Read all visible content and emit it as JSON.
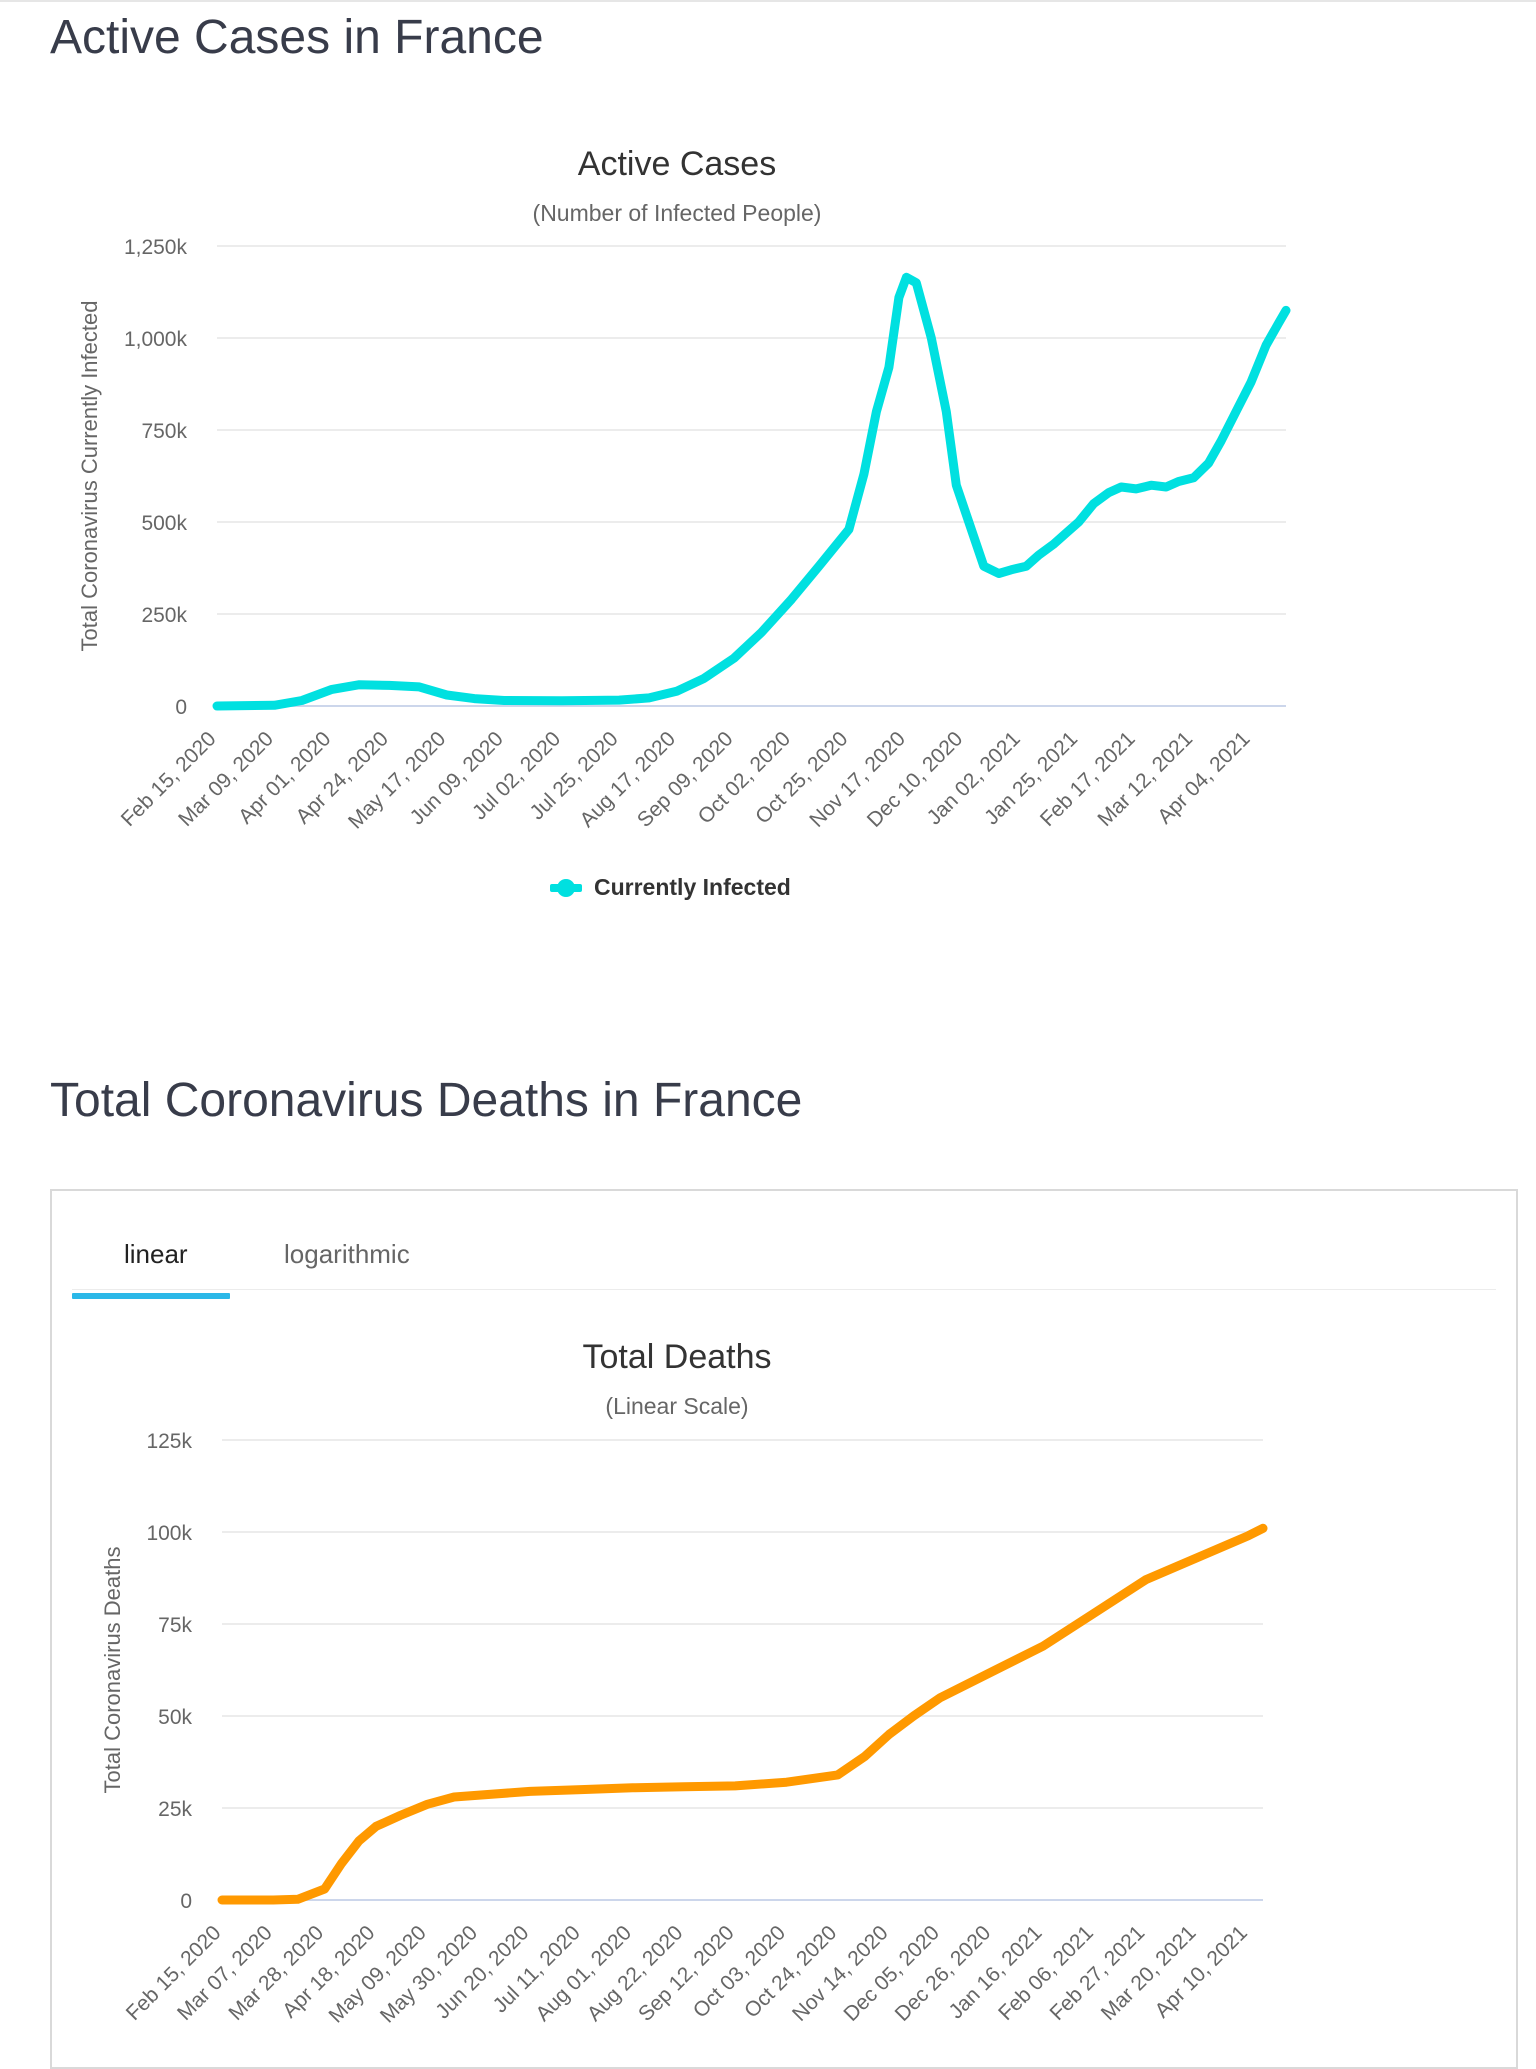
{
  "page": {
    "active_title": "Active Cases in France",
    "deaths_title": "Total Coronavirus Deaths in France"
  },
  "tabs": {
    "linear": "linear",
    "logarithmic": "logarithmic",
    "selected": "linear"
  },
  "colors": {
    "active_series": "#00e0e0",
    "deaths_series": "#ff9900",
    "tab_active_underline": "#2bb8e8"
  },
  "chart_data": [
    {
      "type": "line",
      "title": "Active Cases",
      "subtitle": "(Number of Infected People)",
      "xlabel": "",
      "ylabel": "Total Coronavirus Currently Infected",
      "ylim": [
        0,
        1250000
      ],
      "yticks": [
        0,
        250000,
        500000,
        750000,
        1000000,
        1250000
      ],
      "ytick_labels": [
        "0",
        "250k",
        "500k",
        "750k",
        "1,000k",
        "1,250k"
      ],
      "xtick_labels": [
        "Feb 15, 2020",
        "Mar 09, 2020",
        "Apr 01, 2020",
        "Apr 24, 2020",
        "May 17, 2020",
        "Jun 09, 2020",
        "Jul 02, 2020",
        "Jul 25, 2020",
        "Aug 17, 2020",
        "Sep 09, 2020",
        "Oct 02, 2020",
        "Oct 25, 2020",
        "Nov 17, 2020",
        "Dec 10, 2020",
        "Jan 02, 2021",
        "Jan 25, 2021",
        "Feb 17, 2021",
        "Mar 12, 2021",
        "Apr 04, 2021"
      ],
      "grid": true,
      "legend": "bottom-center",
      "series": [
        {
          "name": "Currently Infected",
          "x": [
            "Feb 15, 2020",
            "Mar 09, 2020",
            "Mar 20, 2020",
            "Apr 01, 2020",
            "Apr 12, 2020",
            "Apr 24, 2020",
            "May 06, 2020",
            "May 17, 2020",
            "May 28, 2020",
            "Jun 09, 2020",
            "Jul 02, 2020",
            "Jul 25, 2020",
            "Aug 06, 2020",
            "Aug 17, 2020",
            "Aug 28, 2020",
            "Sep 09, 2020",
            "Sep 20, 2020",
            "Oct 02, 2020",
            "Oct 13, 2020",
            "Oct 25, 2020",
            "Oct 31, 2020",
            "Nov 05, 2020",
            "Nov 10, 2020",
            "Nov 14, 2020",
            "Nov 17, 2020",
            "Nov 21, 2020",
            "Nov 27, 2020",
            "Dec 03, 2020",
            "Dec 07, 2020",
            "Dec 12, 2020",
            "Dec 18, 2020",
            "Dec 24, 2020",
            "Dec 29, 2020",
            "Jan 04, 2021",
            "Jan 09, 2021",
            "Jan 15, 2021",
            "Jan 20, 2021",
            "Jan 25, 2021",
            "Jan 31, 2021",
            "Feb 06, 2021",
            "Feb 11, 2021",
            "Feb 17, 2021",
            "Feb 23, 2021",
            "Mar 01, 2021",
            "Mar 06, 2021",
            "Mar 12, 2021",
            "Mar 18, 2021",
            "Mar 23, 2021",
            "Mar 29, 2021",
            "Apr 04, 2021",
            "Apr 10, 2021",
            "Apr 15, 2021",
            "Apr 18, 2021"
          ],
          "values": [
            0,
            2000,
            15000,
            45000,
            58000,
            56000,
            52000,
            30000,
            20000,
            15000,
            14000,
            16000,
            22000,
            40000,
            75000,
            130000,
            200000,
            290000,
            380000,
            480000,
            630000,
            800000,
            920000,
            1110000,
            1165000,
            1150000,
            1000000,
            800000,
            600000,
            500000,
            380000,
            360000,
            370000,
            380000,
            410000,
            440000,
            470000,
            500000,
            550000,
            580000,
            595000,
            590000,
            600000,
            595000,
            610000,
            620000,
            660000,
            720000,
            800000,
            880000,
            980000,
            1040000,
            1075000
          ]
        }
      ]
    },
    {
      "type": "line",
      "title": "Total Deaths",
      "subtitle": "(Linear Scale)",
      "xlabel": "",
      "ylabel": "Total Coronavirus Deaths",
      "ylim": [
        0,
        125000
      ],
      "yticks": [
        0,
        25000,
        50000,
        75000,
        100000,
        125000
      ],
      "ytick_labels": [
        "0",
        "25k",
        "50k",
        "75k",
        "100k",
        "125k"
      ],
      "xtick_labels": [
        "Feb 15, 2020",
        "Mar 07, 2020",
        "Mar 28, 2020",
        "Apr 18, 2020",
        "May 09, 2020",
        "May 30, 2020",
        "Jun 20, 2020",
        "Jul 11, 2020",
        "Aug 01, 2020",
        "Aug 22, 2020",
        "Sep 12, 2020",
        "Oct 03, 2020",
        "Oct 24, 2020",
        "Nov 14, 2020",
        "Dec 05, 2020",
        "Dec 26, 2020",
        "Jan 16, 2021",
        "Feb 06, 2021",
        "Feb 27, 2021",
        "Mar 20, 2021",
        "Apr 10, 2021"
      ],
      "grid": true,
      "series": [
        {
          "x": [
            "Feb 15, 2020",
            "Mar 07, 2020",
            "Mar 17, 2020",
            "Mar 28, 2020",
            "Apr 04, 2020",
            "Apr 11, 2020",
            "Apr 18, 2020",
            "Apr 28, 2020",
            "May 09, 2020",
            "May 20, 2020",
            "Jun 20, 2020",
            "Jul 11, 2020",
            "Aug 01, 2020",
            "Aug 22, 2020",
            "Sep 12, 2020",
            "Oct 03, 2020",
            "Oct 24, 2020",
            "Nov 04, 2020",
            "Nov 14, 2020",
            "Nov 24, 2020",
            "Dec 05, 2020",
            "Dec 26, 2020",
            "Jan 16, 2021",
            "Feb 06, 2021",
            "Feb 27, 2021",
            "Mar 20, 2021",
            "Apr 10, 2021",
            "Apr 16, 2021"
          ],
          "values": [
            0,
            0,
            200,
            3000,
            10000,
            16000,
            20000,
            23000,
            26000,
            28000,
            29500,
            30000,
            30500,
            30800,
            31000,
            32000,
            34000,
            39000,
            45000,
            50000,
            55000,
            62000,
            69000,
            78000,
            87000,
            93000,
            99000,
            101000
          ]
        }
      ]
    }
  ]
}
